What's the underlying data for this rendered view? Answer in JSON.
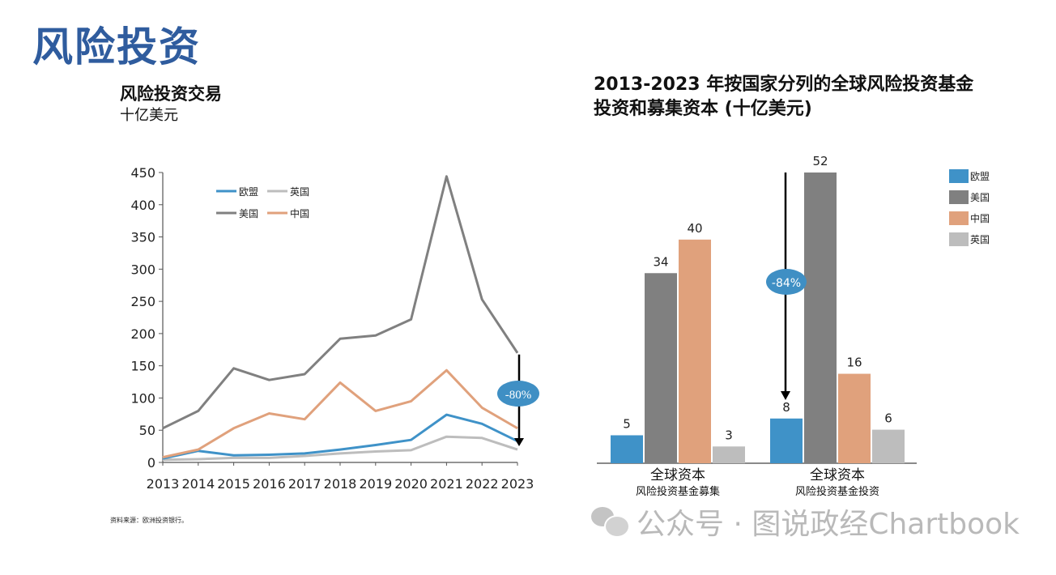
{
  "page": {
    "title": "风险投资"
  },
  "left_chart_header": {
    "title": "风险投资交易",
    "subtitle": "十亿美元"
  },
  "right_chart_header": {
    "title": "2013-2023 年按国家分列的全球风险投资基金投资和募集资本 (十亿美元)"
  },
  "source_note": "资料来源：欧洲投资银行。",
  "watermark": "公众号 · 图说政经Chartbook",
  "icons": {
    "watermark": "wechat-icon"
  },
  "colors": {
    "title": "#2f5c9e",
    "eu": "#3f92c8",
    "us": "#808080",
    "china": "#e0a17c",
    "uk": "#bdbdbd"
  },
  "chart_data": [
    {
      "type": "line",
      "title": "风险投资交易",
      "ylabel": "十亿美元",
      "x": [
        "2013",
        "2014",
        "2015",
        "2016",
        "2017",
        "2018",
        "2019",
        "2020",
        "2021",
        "2022",
        "2023"
      ],
      "ylim": [
        0,
        450
      ],
      "yticks": [
        0,
        50,
        100,
        150,
        200,
        250,
        300,
        350,
        400,
        450
      ],
      "legend_position": "top-left",
      "series": [
        {
          "name": "欧盟",
          "color": "#3f92c8",
          "values": [
            6,
            18,
            11,
            12,
            14,
            20,
            27,
            35,
            74,
            60,
            33
          ]
        },
        {
          "name": "英国",
          "color": "#bdbdbd",
          "values": [
            4,
            5,
            7,
            7,
            10,
            14,
            17,
            19,
            40,
            38,
            20
          ]
        },
        {
          "name": "美国",
          "color": "#808080",
          "values": [
            53,
            80,
            146,
            128,
            137,
            192,
            197,
            222,
            444,
            253,
            170
          ]
        },
        {
          "name": "中国",
          "color": "#e0a17c",
          "values": [
            8,
            20,
            53,
            76,
            67,
            124,
            80,
            95,
            143,
            85,
            53
          ]
        }
      ],
      "annotation": {
        "label": "-80%"
      }
    },
    {
      "type": "bar",
      "title": "2013-2023 年按国家分列的全球风险投资基金投资和募集资本 (十亿美元)",
      "categories": [
        {
          "label": "全球资本",
          "sublabel": "风险投资基金募集"
        },
        {
          "label": "全球资本",
          "sublabel": "风险投资基金投资"
        }
      ],
      "series": [
        {
          "name": "欧盟",
          "color": "#3f92c8",
          "values": [
            5,
            8
          ]
        },
        {
          "name": "美国",
          "color": "#808080",
          "values": [
            34,
            52
          ]
        },
        {
          "name": "中国",
          "color": "#e0a17c",
          "values": [
            40,
            16
          ]
        },
        {
          "name": "英国",
          "color": "#bdbdbd",
          "values": [
            3,
            6
          ]
        }
      ],
      "legend_position": "right",
      "annotation": {
        "label": "-84%"
      }
    }
  ]
}
